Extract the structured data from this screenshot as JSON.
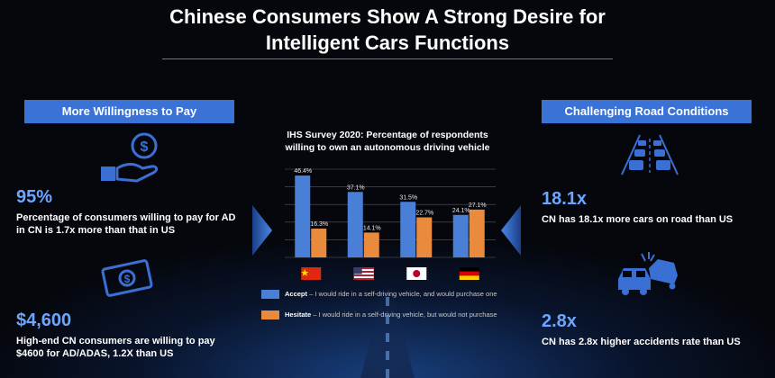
{
  "slide": {
    "title_line1": "Chinese Consumers Show A Strong Desire for",
    "title_line2": "Intelligent Cars Functions",
    "colors": {
      "accent_blue": "#4a7fd8",
      "accent_orange": "#ea8a3c",
      "badge": "#3a72d6",
      "stat": "#6da6ff"
    }
  },
  "left_panel": {
    "badge": "More Willingness to Pay",
    "stat1": {
      "value": "95%",
      "line1": "Percentage of consumers willing to pay for AD",
      "line2": "in CN is 1.7x more than that in US",
      "icon": "hand-coin-icon"
    },
    "stat2": {
      "value": "$4,600",
      "line1": "High-end CN consumers are willing to pay",
      "line2": "$4600 for AD/ADAS, 1.2X than US",
      "icon": "money-icon"
    }
  },
  "right_panel": {
    "badge": "Challenging Road Conditions",
    "stat1": {
      "value": "18.1x",
      "line1": "CN has 18.1x more cars on road than US",
      "icon": "traffic-road-icon"
    },
    "stat2": {
      "value": "2.8x",
      "line1": "CN has 2.8x higher accidents rate than US",
      "icon": "car-crash-icon"
    }
  },
  "chart_data": {
    "type": "bar",
    "title_line1": "IHS Survey 2020: Percentage of respondents",
    "title_line2": "willing to own an autonomous driving vehicle",
    "categories": [
      "China",
      "United States",
      "Japan",
      "Germany"
    ],
    "category_display": "flags",
    "series": [
      {
        "name": "Accept",
        "color": "#4a7fd8",
        "values": [
          46.4,
          37.1,
          31.5,
          24.1
        ],
        "labels": [
          "46.4%",
          "37.1%",
          "31.5%",
          "24.1%"
        ]
      },
      {
        "name": "Hesitate",
        "color": "#ea8a3c",
        "values": [
          16.3,
          14.1,
          22.7,
          27.1
        ],
        "labels": [
          "16.3%",
          "14.1%",
          "22.7%",
          "27.1%"
        ]
      }
    ],
    "ylim": [
      0,
      50
    ],
    "grid": true,
    "legend": [
      {
        "name": "Accept",
        "desc": " – I would ride in a self-driving vehicle, and would purchase one"
      },
      {
        "name": "Hesitate",
        "desc": " – I would ride in a self-driving vehicle, but would not purchase"
      }
    ]
  }
}
